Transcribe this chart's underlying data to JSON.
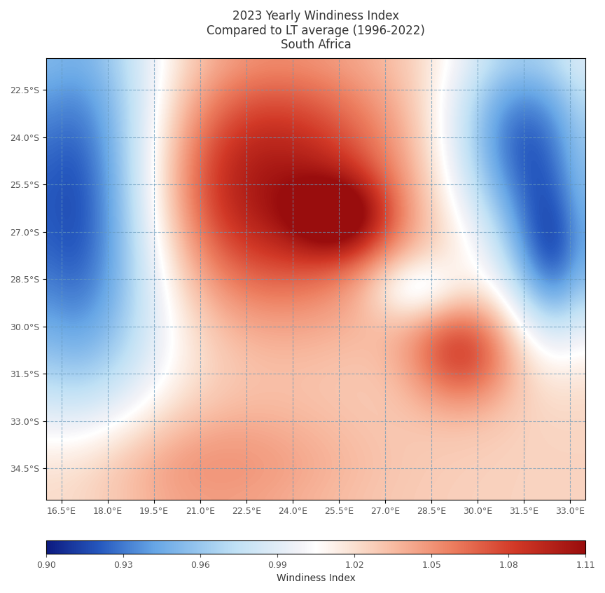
{
  "title_line1": "2023 Yearly Windiness Index",
  "title_line2": "Compared to LT average (1996-2022)",
  "title_line3": "South Africa",
  "colorbar_label": "Windiness Index",
  "colorbar_ticks": [
    0.9,
    0.93,
    0.96,
    0.99,
    1.02,
    1.05,
    1.08,
    1.11
  ],
  "vmin": 0.9,
  "vmax": 1.11,
  "lon_min": 16.0,
  "lon_max": 33.5,
  "lat_min": -35.5,
  "lat_max": -21.5,
  "xticks": [
    16.5,
    18.0,
    19.5,
    21.0,
    22.5,
    24.0,
    25.5,
    27.0,
    28.5,
    30.0,
    31.5,
    33.0
  ],
  "yticks": [
    -22.5,
    -24.0,
    -25.5,
    -27.0,
    -28.5,
    -30.0,
    -31.5,
    -33.0,
    -34.5
  ],
  "grid_color": "#6699bb",
  "grid_alpha": 0.7,
  "background_color": "#ffffff"
}
